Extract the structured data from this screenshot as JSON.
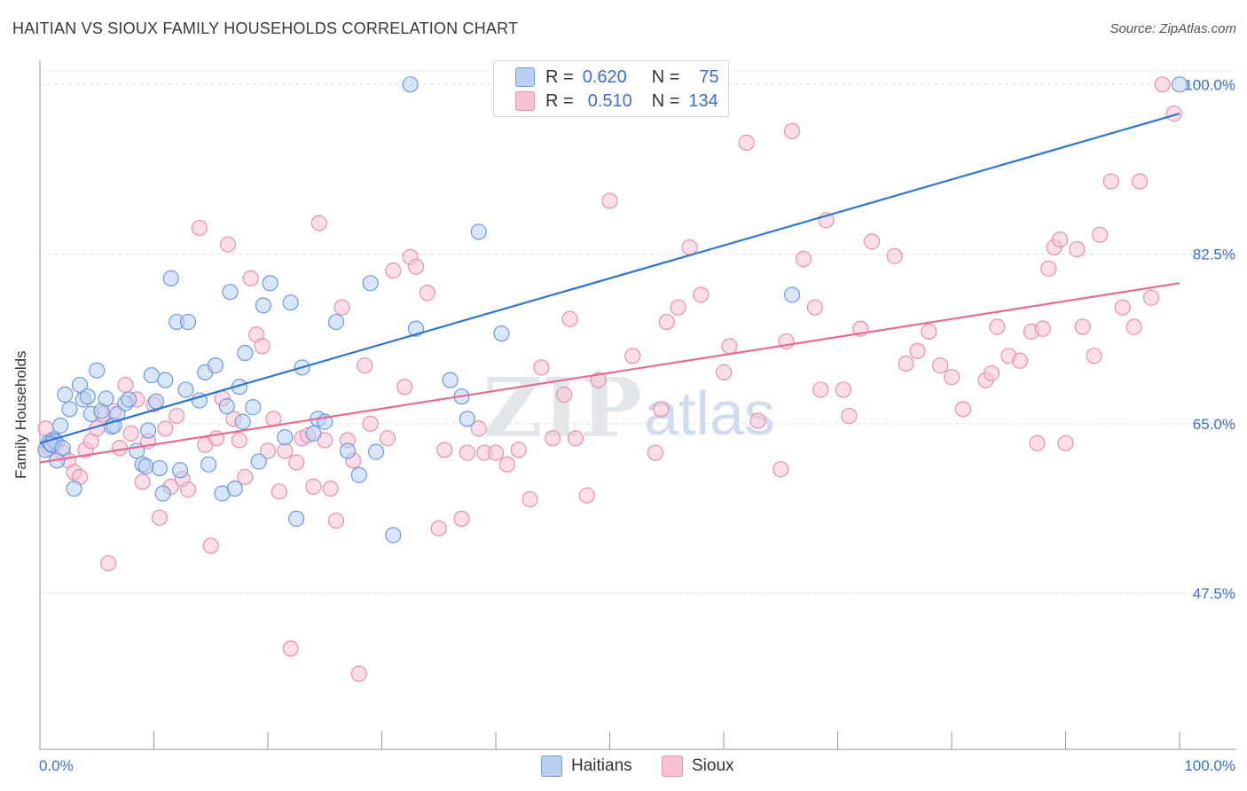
{
  "title": "HAITIAN VS SIOUX FAMILY HOUSEHOLDS CORRELATION CHART",
  "source": "Source: ZipAtlas.com",
  "colors": {
    "haitians_fill": "#b9d0f2",
    "haitians_stroke": "#6d9be0",
    "haitians_line": "#2f74d0",
    "sioux_fill": "#f7c3d4",
    "sioux_stroke": "#e890b0",
    "sioux_line": "#e46c96",
    "tick_label": "#3a6fd1",
    "grid": "#dddddd"
  },
  "legend_top": {
    "rows": [
      {
        "r_label": "R =",
        "r_value": "0.620",
        "n_label": "N =",
        "n_value": "75"
      },
      {
        "r_label": "R =",
        "r_value": "0.510",
        "n_label": "N =",
        "n_value": "134"
      }
    ]
  },
  "watermark": {
    "zip": "ZIP",
    "atlas": "atlas"
  },
  "chart_data": {
    "type": "scatter",
    "title": "HAITIAN VS SIOUX FAMILY HOUSEHOLDS CORRELATION CHART",
    "xlabel": "",
    "ylabel": "Family Households",
    "xlim": [
      0,
      100
    ],
    "ylim": [
      31.4,
      102.5
    ],
    "x_tick_labels": [
      "0.0%",
      "100.0%"
    ],
    "y_ticks": [
      47.5,
      65.0,
      82.5,
      100.0
    ],
    "y_tick_labels": [
      "47.5%",
      "65.0%",
      "82.5%",
      "100.0%"
    ],
    "legend": [
      "Haitians",
      "Sioux"
    ],
    "legend_placement": "bottom-center",
    "series": [
      {
        "name": "Haitians",
        "trend": {
          "x": [
            0,
            100
          ],
          "y": [
            63.0,
            97.0
          ]
        },
        "points": [
          [
            0.5,
            62.3
          ],
          [
            0.8,
            63.1
          ],
          [
            1.0,
            62.8
          ],
          [
            1.2,
            63.4
          ],
          [
            1.5,
            61.2
          ],
          [
            1.8,
            64.8
          ],
          [
            2.2,
            68.0
          ],
          [
            2.6,
            66.5
          ],
          [
            3.0,
            58.3
          ],
          [
            3.5,
            69.0
          ],
          [
            3.8,
            67.5
          ],
          [
            4.2,
            67.8
          ],
          [
            4.5,
            66.0
          ],
          [
            5.0,
            70.5
          ],
          [
            5.4,
            66.3
          ],
          [
            5.8,
            67.6
          ],
          [
            6.3,
            64.7
          ],
          [
            6.5,
            64.8
          ],
          [
            6.8,
            66.0
          ],
          [
            7.5,
            67.1
          ],
          [
            7.8,
            67.5
          ],
          [
            8.5,
            62.2
          ],
          [
            9.0,
            60.8
          ],
          [
            9.3,
            60.6
          ],
          [
            9.5,
            64.3
          ],
          [
            9.8,
            70.0
          ],
          [
            10.2,
            67.3
          ],
          [
            10.5,
            60.4
          ],
          [
            10.8,
            57.8
          ],
          [
            11.0,
            69.5
          ],
          [
            11.5,
            80.0
          ],
          [
            12.0,
            75.5
          ],
          [
            12.3,
            60.2
          ],
          [
            12.8,
            68.5
          ],
          [
            13.0,
            75.5
          ],
          [
            14.0,
            67.4
          ],
          [
            14.5,
            70.3
          ],
          [
            14.8,
            60.8
          ],
          [
            15.4,
            71.0
          ],
          [
            16.0,
            57.8
          ],
          [
            16.4,
            66.8
          ],
          [
            16.7,
            78.6
          ],
          [
            17.1,
            58.3
          ],
          [
            17.5,
            68.8
          ],
          [
            17.8,
            65.2
          ],
          [
            18.0,
            72.3
          ],
          [
            18.7,
            66.7
          ],
          [
            19.2,
            61.1
          ],
          [
            19.6,
            77.2
          ],
          [
            20.2,
            79.5
          ],
          [
            21.5,
            63.6
          ],
          [
            22.0,
            77.5
          ],
          [
            22.5,
            55.2
          ],
          [
            23.0,
            70.8
          ],
          [
            24.0,
            64.0
          ],
          [
            24.4,
            65.5
          ],
          [
            25.0,
            65.2
          ],
          [
            26.0,
            75.5
          ],
          [
            27.0,
            62.2
          ],
          [
            28.0,
            59.7
          ],
          [
            29.0,
            79.5
          ],
          [
            29.5,
            62.1
          ],
          [
            31.0,
            53.5
          ],
          [
            32.5,
            100.0
          ],
          [
            33.0,
            74.8
          ],
          [
            36.0,
            69.5
          ],
          [
            37.0,
            67.8
          ],
          [
            37.5,
            65.5
          ],
          [
            38.5,
            84.8
          ],
          [
            40.5,
            74.3
          ],
          [
            66.0,
            78.3
          ],
          [
            100.0,
            100.0
          ],
          [
            1.3,
            63.2
          ],
          [
            1.0,
            62.9
          ],
          [
            2.0,
            62.5
          ]
        ]
      },
      {
        "name": "Sioux",
        "trend": {
          "x": [
            0,
            100
          ],
          "y": [
            61.0,
            79.5
          ]
        },
        "points": [
          [
            0.5,
            64.5
          ],
          [
            1.0,
            63.2
          ],
          [
            1.5,
            63.0
          ],
          [
            2.0,
            62.0
          ],
          [
            2.5,
            61.2
          ],
          [
            3.0,
            60.0
          ],
          [
            3.5,
            59.5
          ],
          [
            4.0,
            62.3
          ],
          [
            4.5,
            63.2
          ],
          [
            5.0,
            64.5
          ],
          [
            5.5,
            66.0
          ],
          [
            6.0,
            50.6
          ],
          [
            6.5,
            66.3
          ],
          [
            7.0,
            62.5
          ],
          [
            7.5,
            69.0
          ],
          [
            8.0,
            64.0
          ],
          [
            8.5,
            67.5
          ],
          [
            9.0,
            59.0
          ],
          [
            9.5,
            63.2
          ],
          [
            10.0,
            67.0
          ],
          [
            10.5,
            55.3
          ],
          [
            11.0,
            64.5
          ],
          [
            11.5,
            58.5
          ],
          [
            12.0,
            65.8
          ],
          [
            12.5,
            59.3
          ],
          [
            13.0,
            58.2
          ],
          [
            14.0,
            85.2
          ],
          [
            14.5,
            62.8
          ],
          [
            15.0,
            52.4
          ],
          [
            15.5,
            63.5
          ],
          [
            16.0,
            67.6
          ],
          [
            16.5,
            83.5
          ],
          [
            17.0,
            65.5
          ],
          [
            17.5,
            63.3
          ],
          [
            18.0,
            59.5
          ],
          [
            18.5,
            80.0
          ],
          [
            19.0,
            74.2
          ],
          [
            19.5,
            73.0
          ],
          [
            20.0,
            62.2
          ],
          [
            20.5,
            65.5
          ],
          [
            21.0,
            58.0
          ],
          [
            21.5,
            62.2
          ],
          [
            22.0,
            41.8
          ],
          [
            22.5,
            61.0
          ],
          [
            23.0,
            63.5
          ],
          [
            23.5,
            63.8
          ],
          [
            24.0,
            58.5
          ],
          [
            24.5,
            85.7
          ],
          [
            25.0,
            63.3
          ],
          [
            25.5,
            58.3
          ],
          [
            26.0,
            55.0
          ],
          [
            26.5,
            77.0
          ],
          [
            27.0,
            63.3
          ],
          [
            27.5,
            61.2
          ],
          [
            28.0,
            39.2
          ],
          [
            28.5,
            71.0
          ],
          [
            29.0,
            65.0
          ],
          [
            30.5,
            63.5
          ],
          [
            31.0,
            80.8
          ],
          [
            32.0,
            68.8
          ],
          [
            32.5,
            82.2
          ],
          [
            33.0,
            81.2
          ],
          [
            34.0,
            78.5
          ],
          [
            35.0,
            54.2
          ],
          [
            35.5,
            62.3
          ],
          [
            37.0,
            55.2
          ],
          [
            37.5,
            62.0
          ],
          [
            38.5,
            64.5
          ],
          [
            39.0,
            62.0
          ],
          [
            40.0,
            62.0
          ],
          [
            41.0,
            60.8
          ],
          [
            42.0,
            62.3
          ],
          [
            43.0,
            57.2
          ],
          [
            44.0,
            70.8
          ],
          [
            45.0,
            63.5
          ],
          [
            46.0,
            68.0
          ],
          [
            46.5,
            75.8
          ],
          [
            47.0,
            63.5
          ],
          [
            48.0,
            57.6
          ],
          [
            49.0,
            69.5
          ],
          [
            50.0,
            88.0
          ],
          [
            52.0,
            72.0
          ],
          [
            54.0,
            62.0
          ],
          [
            54.5,
            66.5
          ],
          [
            55.0,
            75.5
          ],
          [
            56.0,
            77.0
          ],
          [
            57.0,
            83.2
          ],
          [
            58.0,
            78.3
          ],
          [
            60.0,
            70.3
          ],
          [
            60.5,
            73.0
          ],
          [
            62.0,
            94.0
          ],
          [
            63.0,
            65.3
          ],
          [
            65.0,
            60.3
          ],
          [
            65.5,
            73.5
          ],
          [
            66.0,
            95.2
          ],
          [
            67.0,
            82.0
          ],
          [
            68.0,
            77.0
          ],
          [
            68.5,
            68.5
          ],
          [
            69.0,
            86.0
          ],
          [
            70.5,
            68.5
          ],
          [
            71.0,
            65.8
          ],
          [
            72.0,
            74.8
          ],
          [
            73.0,
            83.8
          ],
          [
            75.0,
            82.3
          ],
          [
            76.0,
            71.2
          ],
          [
            77.0,
            72.5
          ],
          [
            78.0,
            74.5
          ],
          [
            79.0,
            71.0
          ],
          [
            80.0,
            69.8
          ],
          [
            81.0,
            66.5
          ],
          [
            83.0,
            69.5
          ],
          [
            83.5,
            70.2
          ],
          [
            84.0,
            75.0
          ],
          [
            85.0,
            72.0
          ],
          [
            86.0,
            71.5
          ],
          [
            87.0,
            74.5
          ],
          [
            87.5,
            63.0
          ],
          [
            88.0,
            74.8
          ],
          [
            88.5,
            81.0
          ],
          [
            89.0,
            83.2
          ],
          [
            89.5,
            84.0
          ],
          [
            90.0,
            63.0
          ],
          [
            91.0,
            83.0
          ],
          [
            91.5,
            75.0
          ],
          [
            92.5,
            72.0
          ],
          [
            93.0,
            84.5
          ],
          [
            94.0,
            90.0
          ],
          [
            95.0,
            77.0
          ],
          [
            96.0,
            75.0
          ],
          [
            96.5,
            90.0
          ],
          [
            97.5,
            78.0
          ],
          [
            98.5,
            100.0
          ],
          [
            99.5,
            97.0
          ],
          [
            0.8,
            62.5
          ]
        ]
      }
    ]
  }
}
